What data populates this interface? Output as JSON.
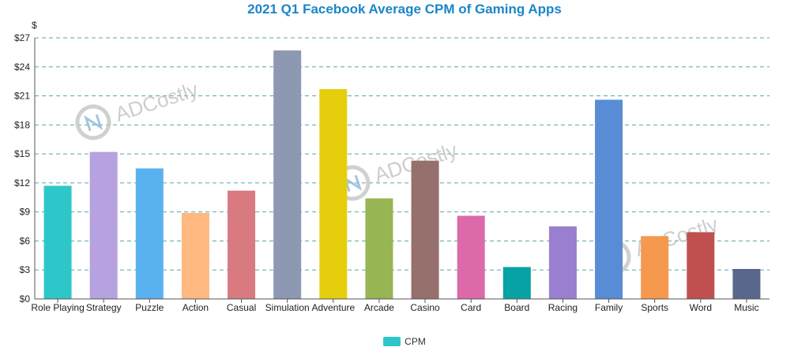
{
  "chart_data": {
    "type": "bar",
    "title": "2021 Q1 Facebook Average CPM of Gaming Apps",
    "ylabel": "$",
    "xlabel": "",
    "ylim": [
      0,
      27
    ],
    "yticks": [
      "$0",
      "$3",
      "$6",
      "$9",
      "$12",
      "$15",
      "$18",
      "$21",
      "$24",
      "$27"
    ],
    "grid": true,
    "legend_position": "bottom-center",
    "categories": [
      "Role Playing",
      "Strategy",
      "Puzzle",
      "Action",
      "Casual",
      "Simulation",
      "Adventure",
      "Arcade",
      "Casino",
      "Card",
      "Board",
      "Racing",
      "Family",
      "Sports",
      "Word",
      "Music"
    ],
    "series": [
      {
        "name": "CPM",
        "legend_color": "#2ec7c9",
        "values": [
          11.7,
          15.2,
          13.5,
          8.9,
          11.2,
          25.7,
          21.7,
          10.4,
          14.3,
          8.6,
          3.3,
          7.5,
          20.6,
          6.5,
          6.9,
          3.1
        ],
        "colors": [
          "#2ec7c9",
          "#b6a2de",
          "#5ab1ef",
          "#ffb980",
          "#d87a80",
          "#8d98b3",
          "#e5cf0d",
          "#97b552",
          "#95706d",
          "#dc69aa",
          "#07a2a4",
          "#9a7fd1",
          "#588dd5",
          "#f5994e",
          "#c05050",
          "#59678c"
        ]
      }
    ],
    "watermark": "ADCostly"
  }
}
